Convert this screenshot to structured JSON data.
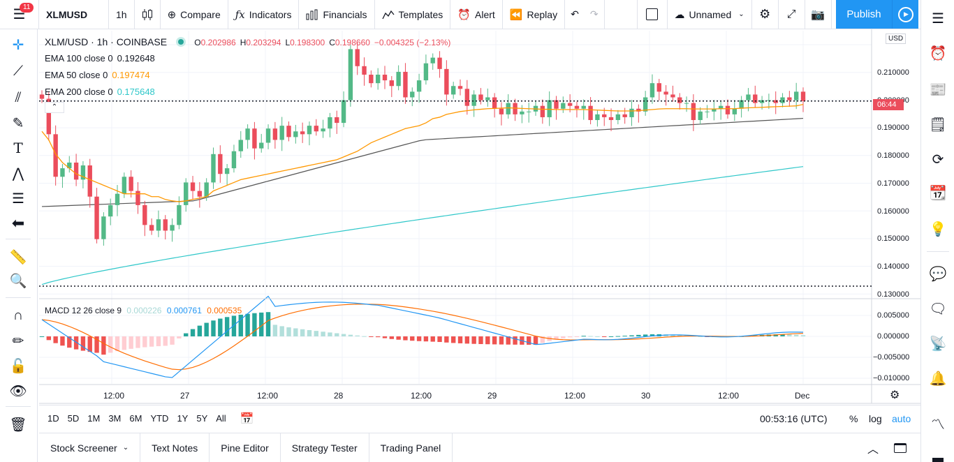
{
  "toolbar": {
    "menu_badge": "11",
    "symbol": "XLMUSD",
    "interval": "1h",
    "compare": "Compare",
    "indicators": "Indicators",
    "financials": "Financials",
    "templates": "Templates",
    "alert": "Alert",
    "replay": "Replay",
    "layout_name": "Unnamed",
    "publish": "Publish"
  },
  "legend": {
    "title": "XLM/USD · 1h · COINBASE",
    "ohlc": [
      {
        "k": "O",
        "v": "0.202986"
      },
      {
        "k": "H",
        "v": "0.203294"
      },
      {
        "k": "L",
        "v": "0.198300"
      },
      {
        "k": "C",
        "v": "0.198660"
      }
    ],
    "change": "−0.004325 (−2.13%)",
    "ema100_label": "EMA 100 close 0",
    "ema100_value": "0.192648",
    "ema50_label": "EMA 50 close 0",
    "ema50_value": "0.197474",
    "ema200_label": "EMA 200 close 0",
    "ema200_value": "0.175648",
    "macd_label": "MACD 12 26 close 9",
    "macd_hist": "0.000226",
    "macd_line": "0.000761",
    "macd_signal": "0.000535"
  },
  "currency": "USD",
  "countdown": "06:44",
  "price_axis": [
    "0.210000",
    "0.200000",
    "0.190000",
    "0.180000",
    "0.170000",
    "0.160000",
    "0.150000",
    "0.140000",
    "0.130000"
  ],
  "macd_axis": [
    "0.005000",
    "0.000000",
    "−0.005000",
    "−0.010000"
  ],
  "time_axis": [
    {
      "label": "12:00",
      "x": 160
    },
    {
      "label": "27",
      "x": 270
    },
    {
      "label": "12:00",
      "x": 380
    },
    {
      "label": "28",
      "x": 490
    },
    {
      "label": "12:00",
      "x": 600
    },
    {
      "label": "29",
      "x": 710
    },
    {
      "label": "12:00",
      "x": 820
    },
    {
      "label": "30",
      "x": 930
    },
    {
      "label": "12:00",
      "x": 1040
    },
    {
      "label": "Dec",
      "x": 1150
    }
  ],
  "ranges": [
    "1D",
    "5D",
    "1M",
    "3M",
    "6M",
    "YTD",
    "1Y",
    "5Y",
    "All"
  ],
  "clock": "00:53:16 (UTC)",
  "scale_options": {
    "percent": "%",
    "log": "log",
    "auto": "auto"
  },
  "bottom_tabs": [
    "Stock Screener",
    "Text Notes",
    "Pine Editor",
    "Strategy Tester",
    "Trading Panel"
  ],
  "colors": {
    "up": "#53b987",
    "down": "#eb4d5c",
    "ema50": "#ff9800",
    "ema100": "#555555",
    "ema200": "#2ec7c9",
    "macd": "#2196f3",
    "signal": "#ff6d00",
    "accent": "#2196f3"
  },
  "chart_data": {
    "type": "candlestick",
    "closes": [
      0.1995,
      0.187,
      0.172,
      0.175,
      0.177,
      0.171,
      0.176,
      0.165,
      0.15,
      0.158,
      0.162,
      0.166,
      0.172,
      0.167,
      0.162,
      0.155,
      0.153,
      0.157,
      0.153,
      0.155,
      0.162,
      0.17,
      0.167,
      0.165,
      0.17,
      0.18,
      0.173,
      0.175,
      0.181,
      0.185,
      0.189,
      0.182,
      0.184,
      0.189,
      0.185,
      0.19,
      0.186,
      0.188,
      0.187,
      0.19,
      0.188,
      0.189,
      0.193,
      0.191,
      0.199,
      0.217,
      0.211,
      0.208,
      0.205,
      0.208,
      0.206,
      0.204,
      0.209,
      0.2,
      0.202,
      0.206,
      0.212,
      0.214,
      0.21,
      0.201,
      0.204,
      0.203,
      0.197,
      0.201,
      0.199,
      0.2,
      0.196,
      0.194,
      0.198,
      0.194,
      0.195,
      0.195,
      0.197,
      0.193,
      0.199,
      0.196,
      0.198,
      0.197,
      0.196,
      0.197,
      0.192,
      0.194,
      0.193,
      0.192,
      0.194,
      0.193,
      0.196,
      0.195,
      0.2,
      0.205,
      0.202,
      0.201,
      0.2,
      0.198,
      0.198,
      0.192,
      0.195,
      0.195,
      0.196,
      0.197,
      0.194,
      0.196,
      0.199,
      0.201,
      0.198,
      0.199,
      0.199,
      0.198,
      0.2,
      0.199,
      0.202,
      0.1987
    ],
    "ema50": [
      0.188,
      0.185,
      0.18,
      0.177,
      0.175,
      0.173,
      0.172,
      0.171,
      0.17,
      0.169,
      0.168,
      0.167,
      0.166,
      0.166,
      0.166,
      0.166,
      0.165,
      0.165,
      0.164,
      0.1635,
      0.1632,
      0.1635,
      0.164,
      0.1645,
      0.165,
      0.167,
      0.168,
      0.169,
      0.17,
      0.171,
      0.1715,
      0.172,
      0.1725,
      0.173,
      0.1735,
      0.174,
      0.1745,
      0.175,
      0.1755,
      0.176,
      0.1765,
      0.177,
      0.1775,
      0.178,
      0.179,
      0.18,
      0.181,
      0.1825,
      0.184,
      0.185,
      0.186,
      0.187,
      0.188,
      0.189,
      0.1895,
      0.19,
      0.191,
      0.1925,
      0.193,
      0.194,
      0.1945,
      0.195,
      0.1953,
      0.1956,
      0.1958,
      0.196,
      0.1961,
      0.1962,
      0.1963,
      0.1962,
      0.1961,
      0.196,
      0.1959,
      0.1958,
      0.1958,
      0.1957,
      0.1957,
      0.1957,
      0.1957,
      0.1957,
      0.1956,
      0.1955,
      0.1954,
      0.1953,
      0.1952,
      0.1952,
      0.1952,
      0.1953,
      0.1955,
      0.1957,
      0.1959,
      0.196,
      0.196,
      0.196,
      0.196,
      0.1959,
      0.1959,
      0.1959,
      0.1959,
      0.196,
      0.196,
      0.196,
      0.1962,
      0.1963,
      0.1964,
      0.1965,
      0.1966,
      0.1967,
      0.1968,
      0.1969,
      0.197,
      0.1975
    ],
    "ema100": 0.192648,
    "ema200": 0.175648,
    "macd_line_last": 0.000761,
    "macd_signal_last": 0.000535,
    "macd_hist_last": 0.000226,
    "ylim": [
      0.1295,
      0.2235
    ]
  }
}
